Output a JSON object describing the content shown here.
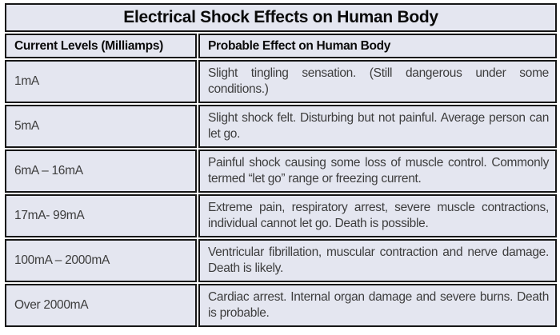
{
  "table": {
    "title": "Electrical Shock Effects on Human Body",
    "columns": [
      "Current Levels (Milliamps)",
      "Probable Effect on Human Body"
    ],
    "rows": [
      {
        "current": "1mA",
        "effect": "Slight tingling sensation. (Still dangerous under some conditions.)"
      },
      {
        "current": "5mA",
        "effect": "Slight shock felt. Disturbing but not painful. Average person can let go."
      },
      {
        "current": "6mA – 16mA",
        "effect": "Painful shock causing some loss of muscle control. Commonly termed “let go” range or freezing current."
      },
      {
        "current": "17mA- 99mA",
        "effect": "Extreme pain, respiratory arrest, severe muscle contractions, individual cannot let go. Death is possible."
      },
      {
        "current": "100mA – 2000mA",
        "effect": "Ventricular fibrillation, muscular contraction and nerve damage. Death is likely."
      },
      {
        "current": "Over 2000mA",
        "effect": "Cardiac arrest. Internal organ damage and severe burns. Death is probable."
      }
    ],
    "colors": {
      "cell_background": "#e4e6f0",
      "border": "#161616",
      "heading_text": "#0a0a0a",
      "body_text": "#3d3d3d"
    }
  }
}
